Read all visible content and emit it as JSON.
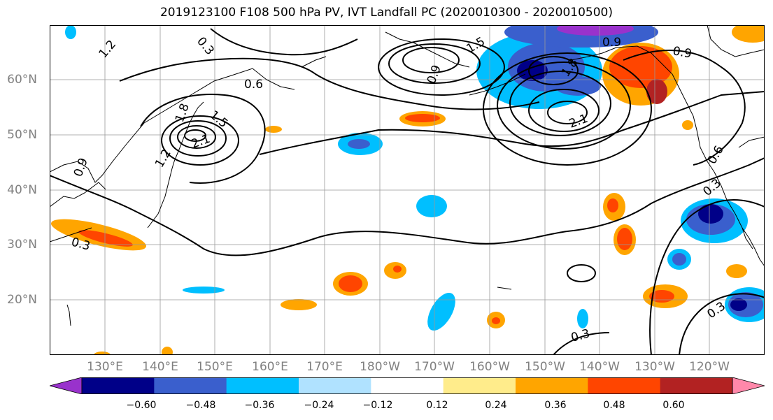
{
  "title": "2019123100 F108 500 hPa PV, IVT Landfall PC (2020010300 - 2020010500)",
  "lat_labels": [
    "60°N",
    "50°N",
    "40°N",
    "30°N",
    "20°N"
  ],
  "lon_labels": [
    "130°E",
    "140°E",
    "150°E",
    "160°E",
    "170°E",
    "180°W",
    "170°W",
    "160°W",
    "150°W",
    "140°W",
    "130°W",
    "120°W"
  ],
  "contour_labels": [
    "1.2",
    "0.3",
    "0.6",
    "1.8",
    "1.5",
    "2.1",
    "1.2",
    "0.9",
    "0.3",
    "0.9",
    "1.5",
    "1.8",
    "2.1",
    "0.9",
    "0.6",
    "0.3",
    "0.3",
    "0.3",
    "0.9"
  ],
  "colorbar": {
    "tick_labels": [
      "−0.60",
      "−0.48",
      "−0.36",
      "−0.24",
      "−0.12",
      "0.12",
      "0.24",
      "0.36",
      "0.48",
      "0.60"
    ],
    "colors": [
      "#9932cc",
      "#000088",
      "#3a5fcd",
      "#00bfff",
      "#b0e2ff",
      "#ffffff",
      "#ffec8b",
      "#ffa500",
      "#ff4500",
      "#b22222",
      "#ff88aa"
    ]
  }
}
